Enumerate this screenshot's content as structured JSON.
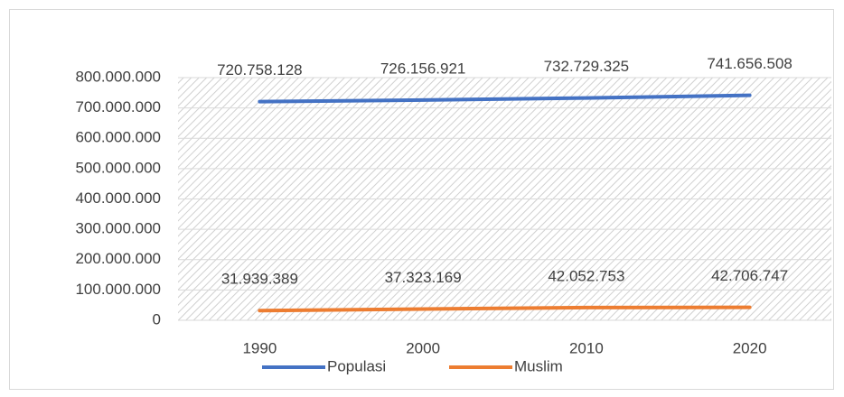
{
  "chart_data": {
    "type": "line",
    "categories": [
      "1990",
      "2000",
      "2010",
      "2020"
    ],
    "series": [
      {
        "name": "Populasi",
        "color": "#4472c4",
        "values": [
          720758128,
          726156921,
          732729325,
          741656508
        ],
        "value_labels": [
          "720.758.128",
          "726.156.921",
          "732.729.325",
          "741.656.508"
        ]
      },
      {
        "name": "Muslim",
        "color": "#ed7d31",
        "values": [
          31939389,
          37323169,
          42052753,
          42706747
        ],
        "value_labels": [
          "31.939.389",
          "37.323.169",
          "42.052.753",
          "42.706.747"
        ]
      }
    ],
    "ylim": [
      0,
      800000000
    ],
    "yticks": [
      0,
      {
        "value": 100000000,
        "label": "100.000.000"
      },
      {
        "value": 200000000,
        "label": "200.000.000"
      },
      {
        "value": 300000000,
        "label": "300.000.000"
      },
      {
        "value": 400000000,
        "label": "400.000.000"
      },
      {
        "value": 500000000,
        "label": "500.000.000"
      },
      {
        "value": 600000000,
        "label": "600.000.000"
      },
      {
        "value": 700000000,
        "label": "700.000.000"
      },
      {
        "value": 800000000,
        "label": "800.000.000"
      }
    ],
    "grid": true,
    "legend": "bottom"
  }
}
